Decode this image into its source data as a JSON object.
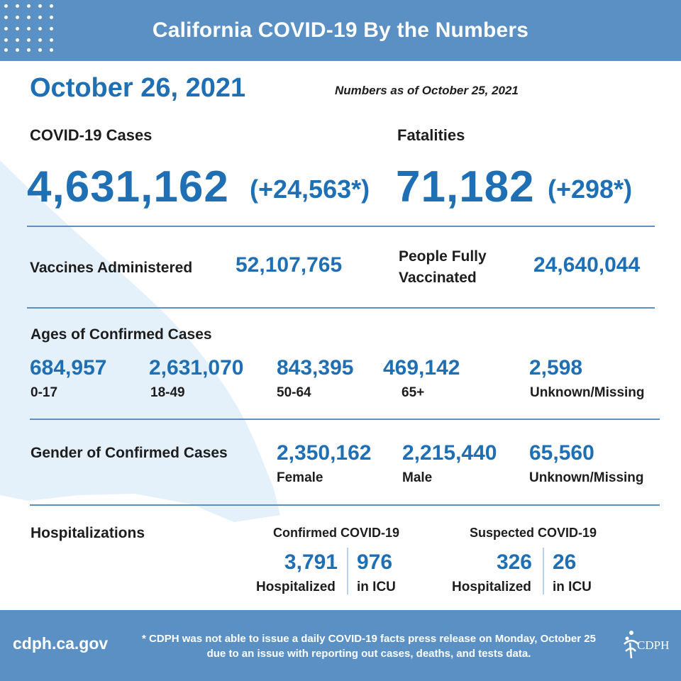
{
  "header": {
    "title": "California COVID-19 By the Numbers"
  },
  "date": "October 26, 2021",
  "as_of": "Numbers as of October 25, 2021",
  "cases": {
    "label": "COVID-19 Cases",
    "total": "4,631,162",
    "delta": "(+24,563*)"
  },
  "fatalities": {
    "label": "Fatalities",
    "total": "71,182",
    "delta": "(+298*)"
  },
  "vaccines": {
    "administered_label": "Vaccines Administered",
    "administered_value": "52,107,765",
    "fully_label_line1": "People Fully",
    "fully_label_line2": "Vaccinated",
    "fully_value": "24,640,044"
  },
  "ages": {
    "title": "Ages of Confirmed Cases",
    "groups": [
      {
        "value": "684,957",
        "label": "0-17"
      },
      {
        "value": "2,631,070",
        "label": "18-49"
      },
      {
        "value": "843,395",
        "label": "50-64"
      },
      {
        "value": "469,142",
        "label": "65+"
      },
      {
        "value": "2,598",
        "label": "Unknown/Missing"
      }
    ]
  },
  "gender": {
    "title": "Gender of Confirmed Cases",
    "groups": [
      {
        "value": "2,350,162",
        "label": "Female"
      },
      {
        "value": "2,215,440",
        "label": "Male"
      },
      {
        "value": "65,560",
        "label": "Unknown/Missing"
      }
    ]
  },
  "hospitalizations": {
    "title": "Hospitalizations",
    "confirmed": {
      "title": "Confirmed COVID-19",
      "hospitalized_value": "3,791",
      "hospitalized_label": "Hospitalized",
      "icu_value": "976",
      "icu_label": "in ICU"
    },
    "suspected": {
      "title": "Suspected COVID-19",
      "hospitalized_value": "326",
      "hospitalized_label": "Hospitalized",
      "icu_value": "26",
      "icu_label": "in ICU"
    }
  },
  "footer": {
    "url": "cdph.ca.gov",
    "note": "* CDPH was not able to issue a daily COVID-19 facts press release on Monday, October 25 due to an issue with reporting out cases, deaths, and tests data.",
    "logo_text": "CDPH"
  },
  "colors": {
    "brand_blue": "#5b90c4",
    "value_blue": "#1f6fb5",
    "map_tint": "#e4f0fa",
    "text_dark": "#1d1d1d"
  },
  "icons": {
    "logo": "cdph-logo-icon",
    "decoration": "dot-grid-icon"
  }
}
